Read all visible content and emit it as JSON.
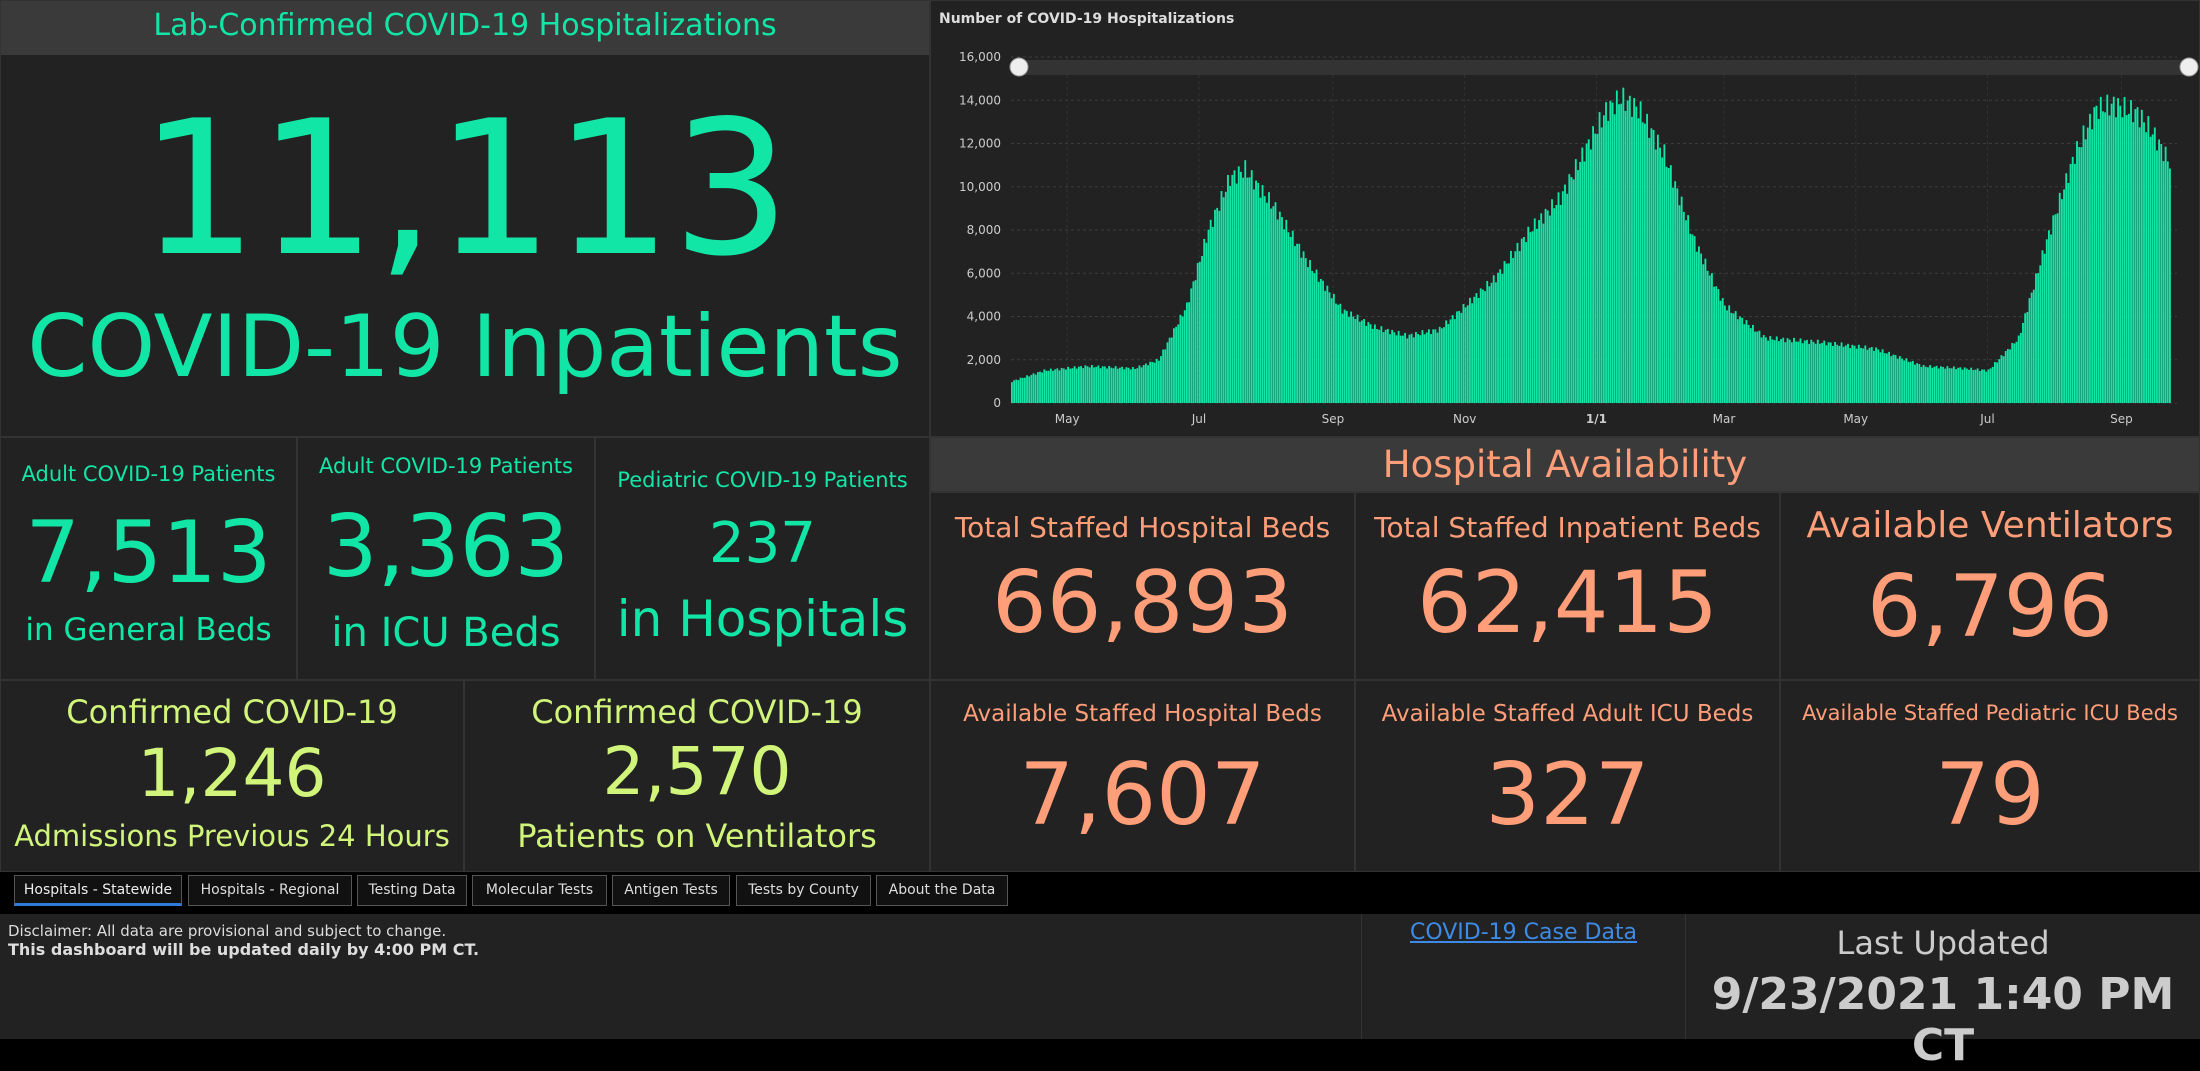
{
  "header": {
    "title": "Lab-Confirmed COVID-19 Hospitalizations"
  },
  "inpatients": {
    "value": "11,113",
    "label": "COVID-19 Inpatients"
  },
  "adult_general": {
    "title": "Adult COVID-19 Patients",
    "value": "7,513",
    "label": "in General Beds"
  },
  "adult_icu": {
    "title": "Adult COVID-19 Patients",
    "value": "3,363",
    "label": "in ICU Beds"
  },
  "pediatric": {
    "title": "Pediatric COVID-19 Patients",
    "value": "237",
    "label": "in Hospitals"
  },
  "admissions": {
    "title": "Confirmed COVID-19",
    "value": "1,246",
    "label": "Admissions Previous 24 Hours"
  },
  "ventilator_patients": {
    "title": "Confirmed COVID-19",
    "value": "2,570",
    "label": "Patients on Ventilators"
  },
  "availability": {
    "title": "Hospital Availability",
    "cells": [
      {
        "title": "Total Staffed Hospital Beds",
        "value": "66,893"
      },
      {
        "title": "Total Staffed Inpatient Beds",
        "value": "62,415"
      },
      {
        "title": "Available Ventilators",
        "value": "6,796"
      },
      {
        "title": "Available Staffed Hospital Beds",
        "value": "7,607"
      },
      {
        "title": "Available Staffed Adult ICU Beds",
        "value": "327"
      },
      {
        "title": "Available Staffed Pediatric ICU Beds",
        "value": "79"
      }
    ]
  },
  "tabs": [
    {
      "label": "Hospitals - Statewide",
      "active": true
    },
    {
      "label": "Hospitals - Regional"
    },
    {
      "label": "Testing Data"
    },
    {
      "label": "Molecular Tests"
    },
    {
      "label": "Antigen Tests"
    },
    {
      "label": "Tests by County"
    },
    {
      "label": "About the Data"
    }
  ],
  "footer": {
    "disclaimer_line1": "Disclaimer: All data are provisional and subject to change.",
    "disclaimer_line2": "This dashboard will be updated daily by 4:00 PM CT.",
    "case_data_link": "COVID-19 Case Data",
    "last_updated_label": "Last Updated",
    "last_updated_value": "9/23/2021 1:40 PM CT"
  },
  "colors": {
    "teal": "#12e6a6",
    "lime": "#d0f57a",
    "salmon": "#ff9e78",
    "link": "#3d8be6"
  },
  "chart_data": {
    "type": "bar",
    "title": "Number of COVID-19 Hospitalizations",
    "ylim": [
      0,
      16000
    ],
    "yticks": [
      0,
      2000,
      4000,
      6000,
      8000,
      10000,
      12000,
      14000,
      16000
    ],
    "ytick_labels": [
      "0",
      "2,000",
      "4,000",
      "6,000",
      "8,000",
      "10,000",
      "12,000",
      "14,000",
      "16,000"
    ],
    "xtick_labels": [
      {
        "label": "May",
        "x": "2020-05-01"
      },
      {
        "label": "Jul",
        "x": "2020-07-01"
      },
      {
        "label": "Sep",
        "x": "2020-09-01"
      },
      {
        "label": "Nov",
        "x": "2020-11-01"
      },
      {
        "label": "1/1",
        "x": "2021-01-01"
      },
      {
        "label": "Mar",
        "x": "2021-03-01"
      },
      {
        "label": "May",
        "x": "2021-05-01"
      },
      {
        "label": "Jul",
        "x": "2021-07-01"
      },
      {
        "label": "Sep",
        "x": "2021-09-01"
      }
    ],
    "xlim": [
      "2020-04-05",
      "2021-09-23"
    ],
    "grid": true,
    "series_points": [
      [
        "2020-04-05",
        1000
      ],
      [
        "2020-04-20",
        1500
      ],
      [
        "2020-05-10",
        1700
      ],
      [
        "2020-06-01",
        1600
      ],
      [
        "2020-06-12",
        2000
      ],
      [
        "2020-06-25",
        4500
      ],
      [
        "2020-07-05",
        8000
      ],
      [
        "2020-07-15",
        10400
      ],
      [
        "2020-07-22",
        10800
      ],
      [
        "2020-07-28",
        10000
      ],
      [
        "2020-08-05",
        9000
      ],
      [
        "2020-08-20",
        6500
      ],
      [
        "2020-09-05",
        4300
      ],
      [
        "2020-09-20",
        3500
      ],
      [
        "2020-10-05",
        3100
      ],
      [
        "2020-10-20",
        3400
      ],
      [
        "2020-11-01",
        4500
      ],
      [
        "2020-11-15",
        5800
      ],
      [
        "2020-12-01",
        8000
      ],
      [
        "2020-12-15",
        9500
      ],
      [
        "2020-12-28",
        12000
      ],
      [
        "2021-01-05",
        13500
      ],
      [
        "2021-01-12",
        14100
      ],
      [
        "2021-01-20",
        13600
      ],
      [
        "2021-02-01",
        11500
      ],
      [
        "2021-02-15",
        7500
      ],
      [
        "2021-03-01",
        4500
      ],
      [
        "2021-03-20",
        3000
      ],
      [
        "2021-04-15",
        2800
      ],
      [
        "2021-05-10",
        2500
      ],
      [
        "2021-06-01",
        1700
      ],
      [
        "2021-06-20",
        1600
      ],
      [
        "2021-07-01",
        1500
      ],
      [
        "2021-07-15",
        3000
      ],
      [
        "2021-07-28",
        7500
      ],
      [
        "2021-08-10",
        11500
      ],
      [
        "2021-08-20",
        13600
      ],
      [
        "2021-08-28",
        13800
      ],
      [
        "2021-09-08",
        13400
      ],
      [
        "2021-09-15",
        12500
      ],
      [
        "2021-09-23",
        11100
      ]
    ]
  }
}
